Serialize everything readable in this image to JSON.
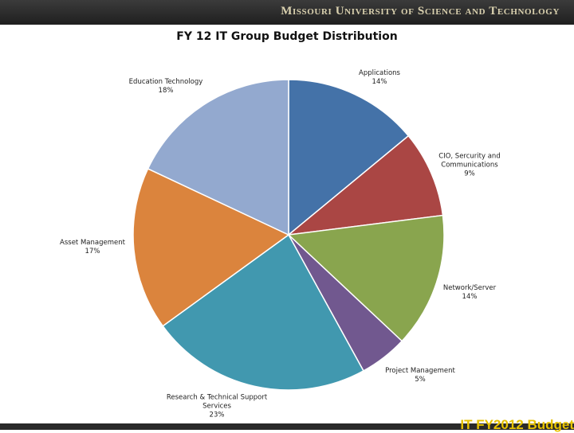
{
  "header": {
    "institution": "Missouri University of Science and Technology"
  },
  "footer": {
    "text": "IT FY2012 Budget"
  },
  "chart_data": {
    "type": "pie",
    "title": "FY 12 IT Group Budget Distribution",
    "slices": [
      {
        "label_lines": [
          "Applications"
        ],
        "value": 14,
        "value_label": "14%",
        "color": "#4472a8"
      },
      {
        "label_lines": [
          "CIO, Sercurity and",
          "Communications"
        ],
        "value": 9,
        "value_label": "9%",
        "color": "#aa4644"
      },
      {
        "label_lines": [
          "Network/Server"
        ],
        "value": 14,
        "value_label": "14%",
        "color": "#89a54e"
      },
      {
        "label_lines": [
          "Project Management"
        ],
        "value": 5,
        "value_label": "5%",
        "color": "#71588f"
      },
      {
        "label_lines": [
          "Research & Technical Support",
          "Services"
        ],
        "value": 23,
        "value_label": "23%",
        "color": "#4198af"
      },
      {
        "label_lines": [
          "Asset Management"
        ],
        "value": 17,
        "value_label": "17%",
        "color": "#db843d"
      },
      {
        "label_lines": [
          "Education Technology"
        ],
        "value": 18,
        "value_label": "18%",
        "color": "#93a9cf"
      }
    ]
  }
}
